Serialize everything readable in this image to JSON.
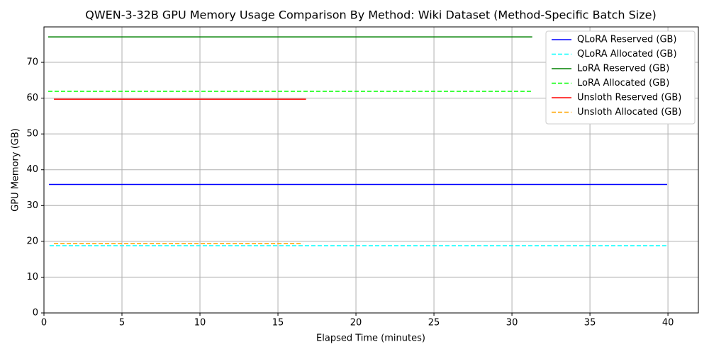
{
  "chart_data": {
    "type": "line",
    "title": "QWEN-3-32B GPU Memory Usage Comparison By Method: Wiki Dataset (Method-Specific Batch Size)",
    "xlabel": "Elapsed Time (minutes)",
    "ylabel": "GPU Memory (GB)",
    "xlim": [
      0,
      41.95
    ],
    "xticks": [
      0,
      5,
      10,
      15,
      20,
      25,
      30,
      35,
      40
    ],
    "ylim": [
      0,
      79.9
    ],
    "yticks": [
      0,
      10,
      20,
      30,
      40,
      50,
      60,
      70
    ],
    "grid": true,
    "legend": "upper right",
    "series": [
      {
        "name": "QLoRA Reserved (GB)",
        "color": "#0000ff",
        "linestyle": "solid",
        "x": [
          0.32,
          39.95
        ],
        "values": [
          35.9,
          35.9
        ]
      },
      {
        "name": "QLoRA Allocated (GB)",
        "color": "#00ffff",
        "linestyle": "dashed",
        "x": [
          0.36,
          39.9
        ],
        "values": [
          18.8,
          18.8
        ]
      },
      {
        "name": "LoRA Reserved (GB)",
        "color": "#008000",
        "linestyle": "solid",
        "x": [
          0.27,
          31.3
        ],
        "values": [
          77.1,
          77.1
        ]
      },
      {
        "name": "LoRA Allocated (GB)",
        "color": "#00ff00",
        "linestyle": "dashed",
        "x": [
          0.27,
          31.27
        ],
        "values": [
          61.9,
          61.9
        ]
      },
      {
        "name": "Unsloth Reserved (GB)",
        "color": "#ff0000",
        "linestyle": "solid",
        "x": [
          0.64,
          16.8
        ],
        "values": [
          59.7,
          59.7
        ]
      },
      {
        "name": "Unsloth Allocated (GB)",
        "color": "#ffa500",
        "linestyle": "dashed",
        "x": [
          0.64,
          16.6
        ],
        "values": [
          19.4,
          19.4
        ]
      }
    ]
  }
}
